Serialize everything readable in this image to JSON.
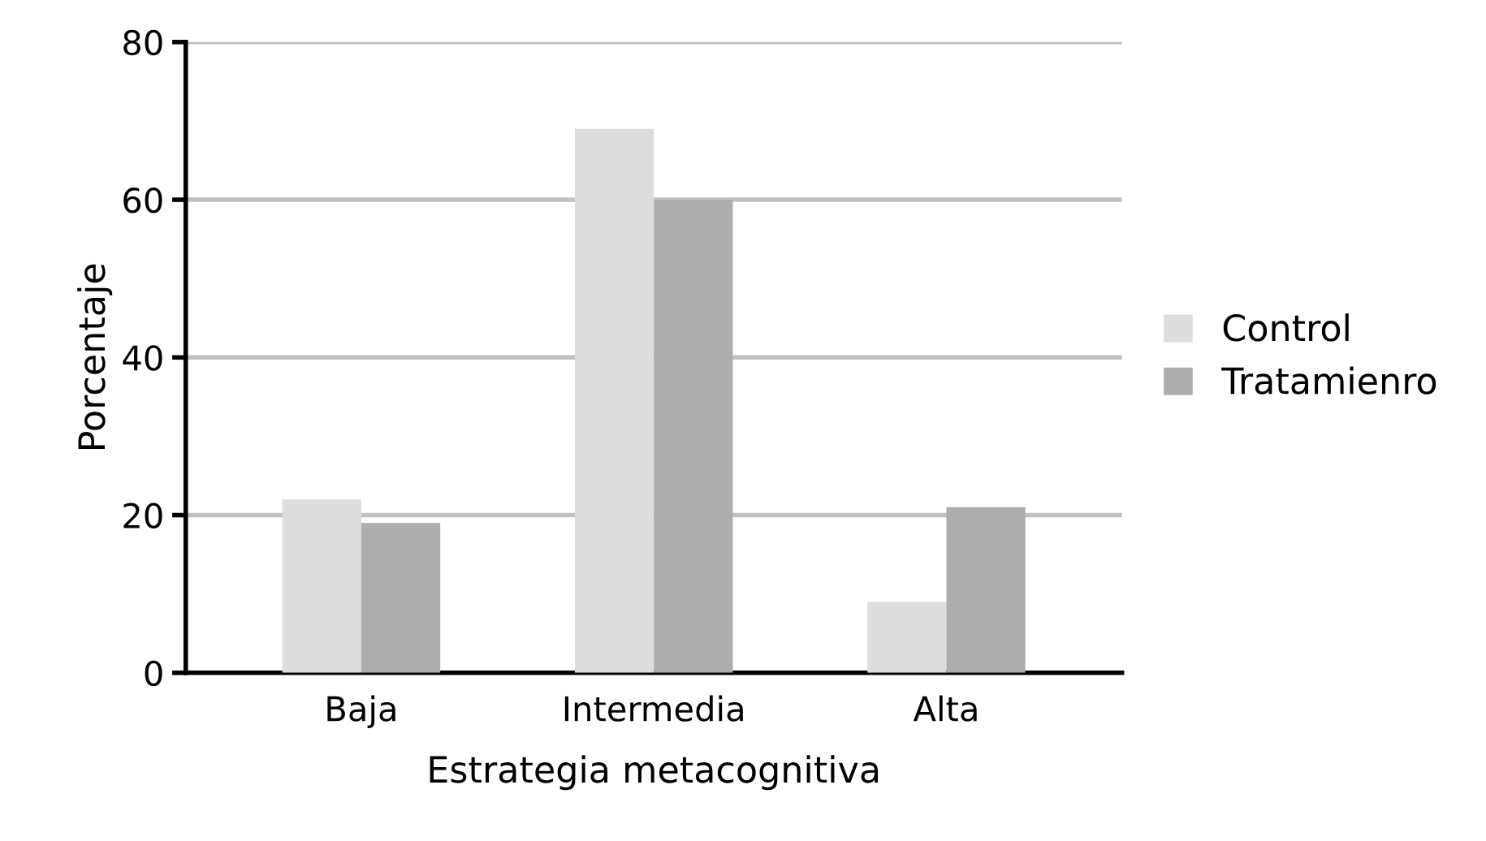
{
  "chart_data": {
    "type": "bar",
    "xlabel": "Estrategia metacognitiva",
    "ylabel": "Porcentaje",
    "categories": [
      "Baja",
      "Intermedia",
      "Alta"
    ],
    "series": [
      {
        "name": "Control",
        "color": "#dddddd",
        "values": [
          22,
          69,
          9
        ]
      },
      {
        "name": "Tratamienro",
        "color": "#adadad",
        "values": [
          19,
          60,
          21
        ]
      }
    ],
    "ylim": [
      0,
      80
    ],
    "yticks": [
      0,
      20,
      40,
      60,
      80
    ],
    "grid": "y",
    "legend": "right"
  }
}
